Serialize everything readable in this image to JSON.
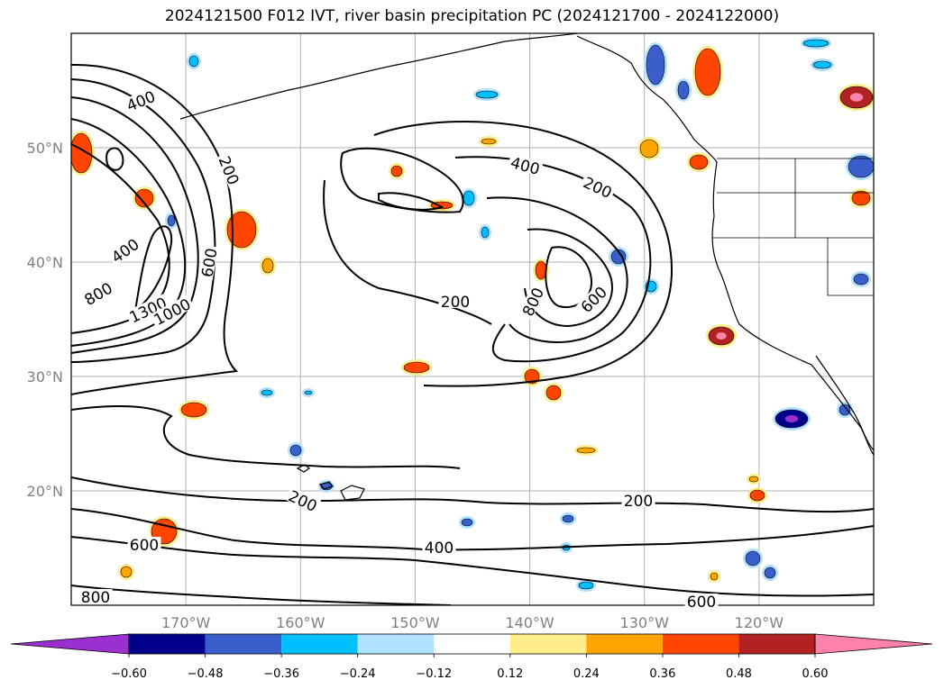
{
  "title": "2024121500 F012 IVT, river basin precipitation PC (2024121700 - 2024122000)",
  "map": {
    "lon_range": [
      -180,
      -110
    ],
    "lat_range": [
      10,
      60
    ],
    "lon_ticks": [
      "170°W",
      "160°W",
      "150°W",
      "140°W",
      "130°W",
      "120°W"
    ],
    "lat_ticks": [
      "50°N",
      "40°N",
      "30°N",
      "20°N"
    ],
    "grid": true,
    "coastline_color": "#000000"
  },
  "ivt_contour_labels": [
    "400",
    "200",
    "600",
    "400",
    "800",
    "1300",
    "1000",
    "400",
    "200",
    "200",
    "800",
    "600",
    "200",
    "200",
    "600",
    "400",
    "800",
    "600"
  ],
  "colorbar": {
    "ticks": [
      "−0.60",
      "−0.48",
      "−0.36",
      "−0.24",
      "−0.12",
      "0.12",
      "0.24",
      "0.36",
      "0.48",
      "0.60"
    ],
    "colors": [
      "#9b30d0",
      "#00008b",
      "#3a5fcd",
      "#00bfff",
      "#b0e2ff",
      "#ffffff",
      "#ffec8b",
      "#ffa500",
      "#ff4500",
      "#b22222",
      "#ff82ab"
    ]
  }
}
